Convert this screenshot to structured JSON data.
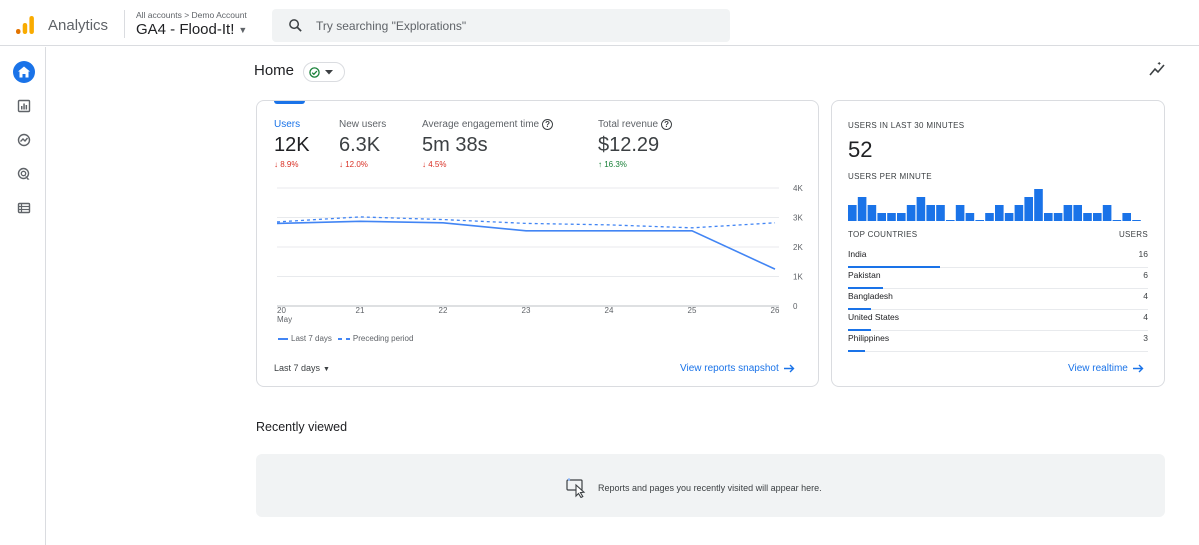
{
  "app": {
    "brand": "Analytics",
    "breadcrumb": "All accounts > Demo Account",
    "property": "GA4 - Flood-It!",
    "logo_colors": [
      "#f9ab00",
      "#e37400"
    ]
  },
  "search": {
    "placeholder": "Try searching \"Explorations\""
  },
  "rail": {
    "items": [
      {
        "icon": "home-icon",
        "active": true
      },
      {
        "icon": "reports-icon"
      },
      {
        "icon": "explore-icon"
      },
      {
        "icon": "advertising-icon"
      },
      {
        "icon": "configure-icon"
      }
    ]
  },
  "home": {
    "title": "Home"
  },
  "overview": {
    "metrics": [
      {
        "label": "Users",
        "value": "12K",
        "change": "8.9%",
        "direction": "down",
        "active": true
      },
      {
        "label": "New users",
        "value": "6.3K",
        "change": "12.0%",
        "direction": "down"
      },
      {
        "label": "Average engagement time",
        "value": "5m 38s",
        "change": "4.5%",
        "direction": "down",
        "help": true
      },
      {
        "label": "Total revenue",
        "value": "$12.29",
        "change": "16.3%",
        "direction": "up",
        "help": true
      }
    ],
    "legend": {
      "current": "Last 7 days",
      "previous": "Preceding period"
    },
    "range_label": "Last 7 days",
    "link": "View reports snapshot"
  },
  "chart_data": {
    "type": "line",
    "x": [
      "20",
      "21",
      "22",
      "23",
      "24",
      "25",
      "26"
    ],
    "x_sublabel": "May",
    "y_ticks": [
      "0",
      "1K",
      "2K",
      "3K",
      "4K"
    ],
    "ylim": [
      0,
      4000
    ],
    "series": [
      {
        "name": "Last 7 days",
        "style": "solid",
        "values": [
          2800,
          2870,
          2820,
          2550,
          2550,
          2550,
          1250
        ]
      },
      {
        "name": "Preceding period",
        "style": "dashed",
        "values": [
          2850,
          3020,
          2930,
          2800,
          2750,
          2650,
          2820
        ]
      }
    ],
    "color": "#4285f4",
    "grid": true
  },
  "realtime": {
    "title": "USERS IN LAST 30 MINUTES",
    "count": "52",
    "per_minute_label": "USERS PER MINUTE",
    "per_minute": [
      2,
      3,
      2,
      1,
      1,
      1,
      2,
      3,
      2,
      2,
      0,
      2,
      1,
      0,
      1,
      2,
      1,
      2,
      3,
      4,
      1,
      1,
      2,
      2,
      1,
      1,
      2,
      0,
      1,
      0
    ],
    "countries_header": "TOP COUNTRIES",
    "users_header": "USERS",
    "countries": [
      {
        "name": "India",
        "users": "16",
        "value": 16
      },
      {
        "name": "Pakistan",
        "users": "6",
        "value": 6
      },
      {
        "name": "Bangladesh",
        "users": "4",
        "value": 4
      },
      {
        "name": "United States",
        "users": "4",
        "value": 4
      },
      {
        "name": "Philippines",
        "users": "3",
        "value": 3
      }
    ],
    "link": "View realtime"
  },
  "recent": {
    "title": "Recently viewed",
    "empty_message": "Reports and pages you recently visited will appear here."
  }
}
